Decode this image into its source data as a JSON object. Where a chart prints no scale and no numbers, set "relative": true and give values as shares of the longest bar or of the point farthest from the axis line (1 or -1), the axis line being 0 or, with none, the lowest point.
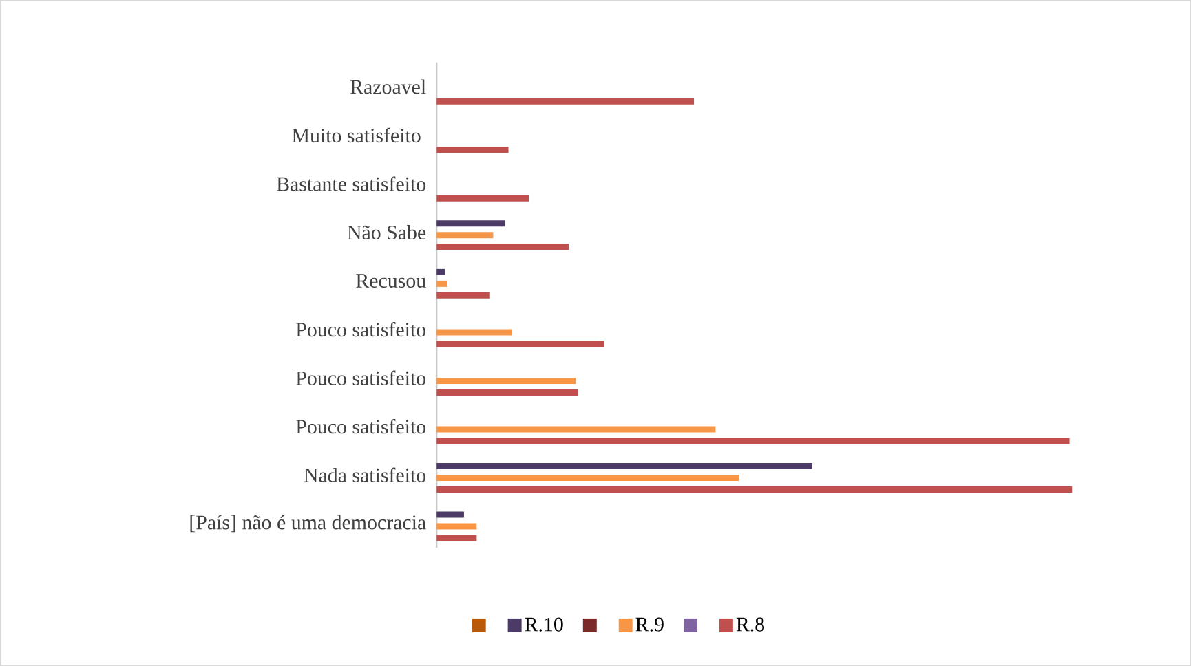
{
  "chart_data": {
    "type": "bar",
    "orientation": "horizontal",
    "relative": true,
    "legend": "bottom",
    "categories": [
      "Razoavel",
      "Muito satisfeito ",
      "Bastante satisfeito",
      "Não Sabe",
      "Recusou",
      "Pouco satisfeito",
      "Pouco satisfeito",
      "Pouco satisfeito",
      "Nada satisfeito",
      "[País] não é uma democracia"
    ],
    "series": [
      {
        "color": "#b85a0a",
        "values": [
          null,
          null,
          null,
          null,
          null,
          null,
          null,
          null,
          null,
          null
        ]
      },
      {
        "name": "R.10",
        "color": "#4b3b66",
        "values": [
          null,
          null,
          null,
          0.108,
          0.013,
          null,
          null,
          null,
          0.591,
          0.043
        ]
      },
      {
        "color": "#7b2a2a",
        "values": [
          null,
          null,
          null,
          null,
          null,
          null,
          null,
          null,
          null,
          null
        ]
      },
      {
        "name": "R.9",
        "color": "#f79646",
        "values": [
          null,
          null,
          null,
          0.089,
          0.017,
          0.119,
          0.219,
          0.439,
          0.476,
          0.063
        ]
      },
      {
        "color": "#8064a2",
        "values": [
          null,
          null,
          null,
          null,
          null,
          null,
          null,
          null,
          null,
          null
        ]
      },
      {
        "name": "R.8",
        "color": "#c0504d",
        "values": [
          0.405,
          0.113,
          0.145,
          0.208,
          0.084,
          0.264,
          0.223,
          0.996,
          1,
          0.063
        ]
      }
    ]
  }
}
